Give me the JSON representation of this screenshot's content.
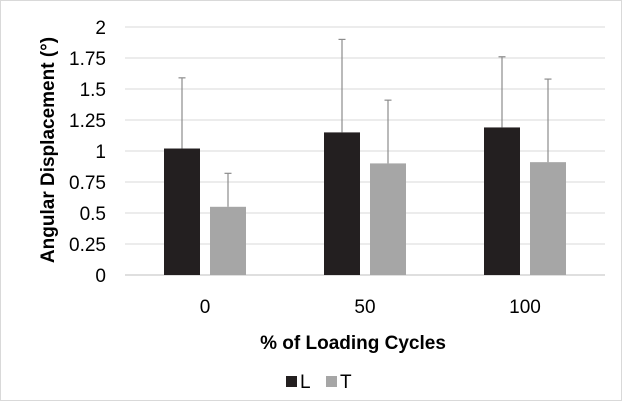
{
  "chart_data": {
    "type": "bar",
    "title": "",
    "xlabel": "% of Loading Cycles",
    "ylabel": "Angular Displacement (°)",
    "categories": [
      "0",
      "50",
      "100"
    ],
    "ylim": [
      0,
      2
    ],
    "yticks": [
      "0",
      "0.25",
      "0.5",
      "0.75",
      "1",
      "1.25",
      "1.5",
      "1.75",
      "2"
    ],
    "grid": true,
    "legend_position": "bottom",
    "series": [
      {
        "name": "L",
        "color": "#231f20",
        "values": [
          1.02,
          1.15,
          1.19
        ],
        "error_upper": [
          0.57,
          0.75,
          0.57
        ]
      },
      {
        "name": "T",
        "color": "#a6a6a6",
        "values": [
          0.55,
          0.9,
          0.91
        ],
        "error_upper": [
          0.27,
          0.51,
          0.67
        ]
      }
    ]
  }
}
